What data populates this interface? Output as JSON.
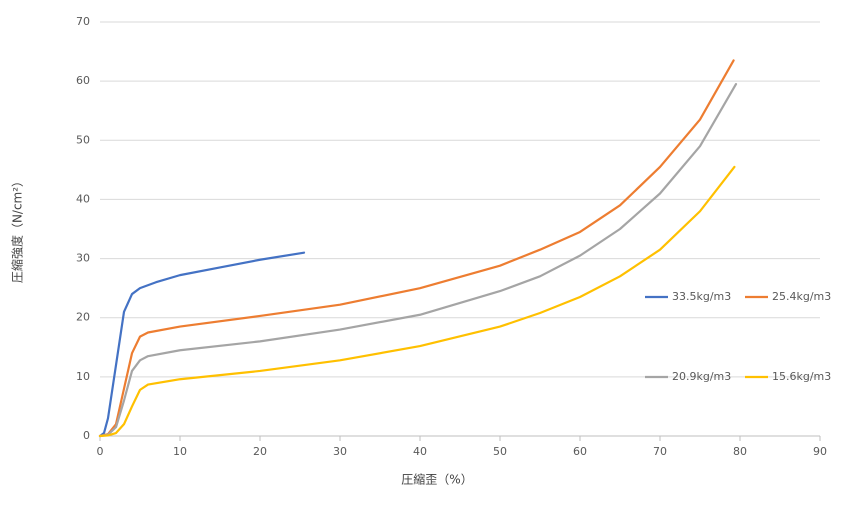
{
  "chart_data": {
    "type": "line",
    "x_label": "圧縮歪（%）",
    "y_label": "圧縮強度（N/cm²）",
    "xlim": [
      0,
      90
    ],
    "xticks": [
      0,
      10,
      20,
      30,
      40,
      50,
      60,
      70,
      80,
      90
    ],
    "ylim": [
      0,
      70
    ],
    "yticks": [
      0,
      10,
      20,
      30,
      40,
      50,
      60,
      70
    ],
    "grid": true,
    "legend": "right",
    "series": [
      {
        "name": "33.5kg/m3",
        "color": "#4472c4",
        "x": [
          0,
          0.5,
          1,
          2,
          3,
          4,
          5,
          7,
          10,
          15,
          20,
          25.5
        ],
        "values": [
          0,
          0.5,
          3,
          12,
          21,
          24,
          25,
          26,
          27.2,
          28.5,
          29.8,
          31
        ]
      },
      {
        "name": "25.4kg/m3",
        "color": "#ed7d31",
        "x": [
          0,
          1,
          2,
          3,
          4,
          5,
          6,
          10,
          20,
          30,
          40,
          50,
          55,
          60,
          65,
          70,
          75,
          79.2
        ],
        "values": [
          0,
          0.3,
          2,
          8,
          14,
          16.8,
          17.5,
          18.5,
          20.3,
          22.2,
          25,
          28.8,
          31.5,
          34.5,
          39,
          45.5,
          53.5,
          63.5
        ]
      },
      {
        "name": "20.9kg/m3",
        "color": "#a5a5a5",
        "x": [
          0,
          1,
          2,
          3,
          4,
          5,
          6,
          10,
          20,
          30,
          40,
          50,
          55,
          60,
          65,
          70,
          75,
          79.5
        ],
        "values": [
          0,
          0.2,
          1.5,
          6,
          11,
          12.8,
          13.5,
          14.5,
          16,
          18,
          20.5,
          24.5,
          27,
          30.5,
          35,
          41,
          49,
          59.5
        ]
      },
      {
        "name": "15.6kg/m3",
        "color": "#ffc000",
        "x": [
          0,
          1,
          2,
          3,
          4,
          5,
          6,
          10,
          20,
          30,
          40,
          50,
          55,
          60,
          65,
          70,
          75,
          79.3
        ],
        "values": [
          0,
          0.1,
          0.5,
          2,
          5,
          7.8,
          8.7,
          9.6,
          11,
          12.8,
          15.2,
          18.5,
          20.8,
          23.5,
          27,
          31.5,
          38,
          45.5
        ]
      }
    ]
  }
}
